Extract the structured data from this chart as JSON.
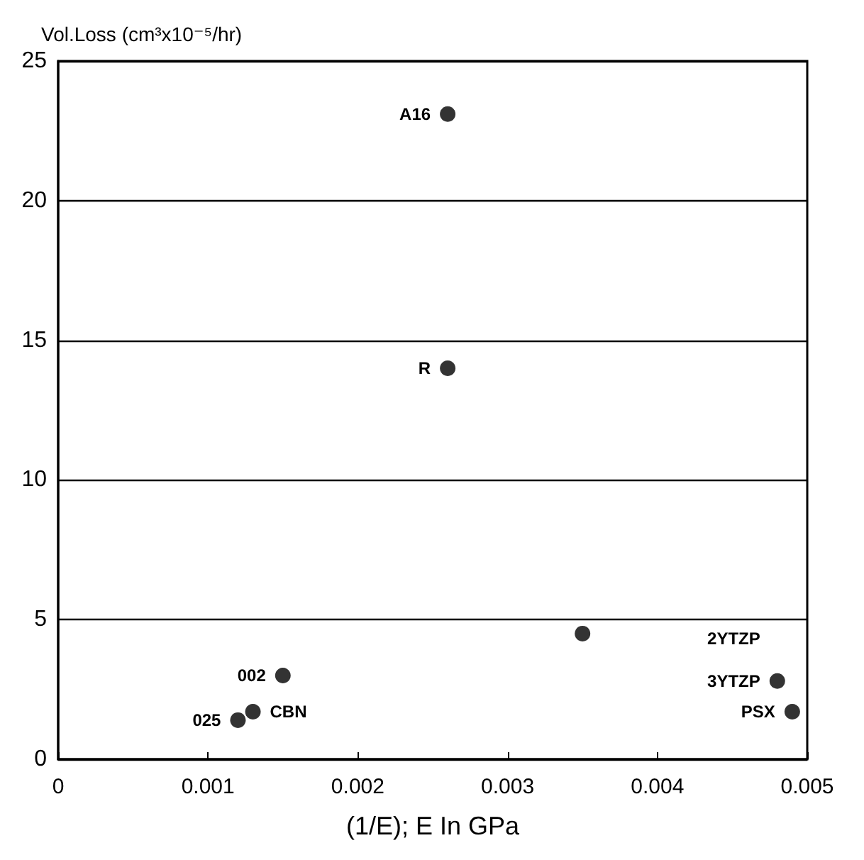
{
  "chart_data": {
    "type": "scatter",
    "ylabel": "Vol.Loss (cm³x10⁻⁵/hr)",
    "xlabel": "(1/E); E In GPa",
    "x": [
      0.0012,
      0.0013,
      0.0015,
      0.0026,
      0.0026,
      0.0035,
      0.0048,
      0.0049
    ],
    "values": [
      1.4,
      1.7,
      3.0,
      23.1,
      14.0,
      4.5,
      2.8,
      1.7
    ],
    "color": "#000000",
    "marker": "circle",
    "xlim": [
      0,
      0.005
    ],
    "xticks": [
      0,
      0.001,
      0.002,
      0.003,
      0.004,
      0.005
    ],
    "ylim": [
      0,
      25
    ],
    "yticks": [
      0,
      5,
      10,
      15,
      20,
      25
    ],
    "grid": "y",
    "annotations": [
      {
        "text": "A16",
        "x": 0.0026,
        "y": 23.1
      },
      {
        "text": "R",
        "x": 0.0026,
        "y": 14.0
      },
      {
        "text": "2YTZP",
        "x": 0.0048,
        "y": 2.8
      },
      {
        "text": "3YTZP",
        "x": 0.0048,
        "y": 2.8
      },
      {
        "text": "PSX",
        "x": 0.0049,
        "y": 1.7
      },
      {
        "text": "CBN",
        "x": 0.0013,
        "y": 1.7
      },
      {
        "text": "002",
        "x": 0.0015,
        "y": 3.0
      },
      {
        "text": "025",
        "x": 0.0012,
        "y": 1.4
      }
    ]
  }
}
